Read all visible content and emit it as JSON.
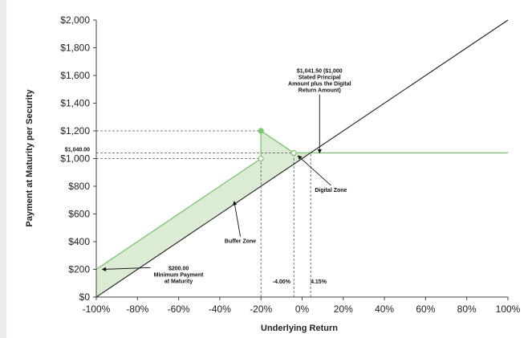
{
  "chart_data": {
    "type": "line",
    "xlabel": "Underlying Return",
    "ylabel": "Payment at Maturity per Security",
    "xlim": [
      -100,
      100
    ],
    "ylim": [
      0,
      2000
    ],
    "x_ticks": [
      -100,
      -80,
      -60,
      -40,
      -20,
      0,
      20,
      40,
      60,
      80,
      100
    ],
    "x_tick_labels": [
      "-100%",
      "-80%",
      "-60%",
      "-40%",
      "-20%",
      "0%",
      "20%",
      "40%",
      "60%",
      "80%",
      "100%"
    ],
    "y_ticks": [
      0,
      200,
      400,
      600,
      800,
      1000,
      1200,
      1400,
      1600,
      1800,
      2000
    ],
    "y_tick_labels": [
      "$0",
      "$200",
      "$400",
      "$600",
      "$800",
      "$1,000",
      "$1,200",
      "$1,400",
      "$1,600",
      "$1,800",
      "$2,000"
    ],
    "extra_y_tick": {
      "value": 1040,
      "label": "$1,040.00"
    },
    "grid": false,
    "series": [
      {
        "color": "#7cc472",
        "x": [
          -100,
          -20,
          -20,
          -4,
          -4,
          100
        ],
        "y": [
          200,
          1000,
          1200,
          1040,
          1041.5,
          1041.5
        ]
      },
      {
        "color": "#222222",
        "x": [
          -100,
          100
        ],
        "y": [
          0,
          2000
        ]
      }
    ],
    "markers": [
      {
        "x": -20,
        "y": 1200,
        "style": "filled",
        "color": "#7cc472"
      },
      {
        "x": -20,
        "y": 1000,
        "style": "hollow",
        "color": "#7cc472"
      },
      {
        "x": -4,
        "y": 1040,
        "style": "hollow",
        "color": "#7cc472"
      }
    ],
    "guide_lines": [
      {
        "from": [
          -100,
          1200
        ],
        "to": [
          -20,
          1200
        ]
      },
      {
        "from": [
          -100,
          1040
        ],
        "to": [
          -4,
          1040
        ]
      },
      {
        "from": [
          -100,
          1000
        ],
        "to": [
          -20,
          1000
        ]
      },
      {
        "from": [
          -20,
          0
        ],
        "to": [
          -20,
          1000
        ]
      },
      {
        "from": [
          -4,
          0
        ],
        "to": [
          -4,
          1040
        ]
      },
      {
        "from": [
          4.15,
          0
        ],
        "to": [
          4.15,
          1041.5
        ]
      }
    ],
    "shaded_region": {
      "color": "#dcebd3",
      "points": [
        [
          -100,
          0
        ],
        [
          -100,
          200
        ],
        [
          -20,
          1000
        ],
        [
          -20,
          1200
        ],
        [
          -4,
          1040
        ],
        [
          4.15,
          1041.5
        ],
        [
          -100,
          0
        ]
      ]
    },
    "annotations": [
      {
        "lines": [
          "$1,041.50 ($1,000",
          "Stated Principal",
          "Amount plus the Digital",
          "Return Amount)"
        ],
        "x": 8.5,
        "y": 1620,
        "arrow_to": [
          8.5,
          1041.5
        ]
      },
      {
        "lines": [
          "Digital Zone"
        ],
        "x": 14,
        "y": 760,
        "arrow_to": [
          -2,
          1020
        ]
      },
      {
        "lines": [
          "Buffer Zone"
        ],
        "x": -30,
        "y": 390,
        "arrow_to": [
          -33,
          690
        ]
      },
      {
        "lines": [
          "$200.00",
          "Minimum Payment",
          "at Maturity"
        ],
        "x": -60,
        "y": 195,
        "arrow_to": [
          -97,
          200
        ]
      },
      {
        "lines": [
          "-4.00%"
        ],
        "x": -10,
        "y": 100
      },
      {
        "lines": [
          "4.15%"
        ],
        "x": 8,
        "y": 100
      }
    ]
  }
}
